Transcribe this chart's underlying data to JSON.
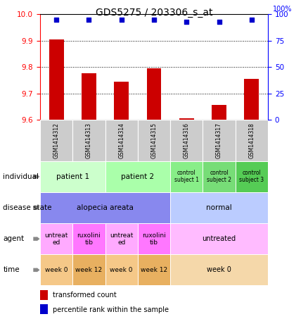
{
  "title": "GDS5275 / 203306_s_at",
  "samples": [
    "GSM1414312",
    "GSM1414313",
    "GSM1414314",
    "GSM1414315",
    "GSM1414316",
    "GSM1414317",
    "GSM1414318"
  ],
  "bar_values": [
    9.905,
    9.775,
    9.745,
    9.795,
    9.605,
    9.655,
    9.755
  ],
  "dot_values": [
    95,
    95,
    95,
    95,
    93,
    93,
    95
  ],
  "ylim_left": [
    9.6,
    10.0
  ],
  "ylim_right": [
    0,
    100
  ],
  "yticks_left": [
    9.6,
    9.7,
    9.8,
    9.9,
    10.0
  ],
  "yticks_right": [
    0,
    25,
    50,
    75,
    100
  ],
  "bar_color": "#cc0000",
  "dot_color": "#0000cc",
  "bar_bottom": 9.6,
  "sample_label_color": "#cccccc",
  "annotation_rows": [
    {
      "label": "individual",
      "cells": [
        {
          "text": "patient 1",
          "span": [
            0,
            2
          ],
          "color": "#ccffcc",
          "fontsize": 7.5
        },
        {
          "text": "patient 2",
          "span": [
            2,
            4
          ],
          "color": "#aaffaa",
          "fontsize": 7.5
        },
        {
          "text": "control\nsubject 1",
          "span": [
            4,
            5
          ],
          "color": "#88ee88",
          "fontsize": 5.5
        },
        {
          "text": "control\nsubject 2",
          "span": [
            5,
            6
          ],
          "color": "#77dd77",
          "fontsize": 5.5
        },
        {
          "text": "control\nsubject 3",
          "span": [
            6,
            7
          ],
          "color": "#55cc55",
          "fontsize": 5.5
        }
      ]
    },
    {
      "label": "disease state",
      "cells": [
        {
          "text": "alopecia areata",
          "span": [
            0,
            4
          ],
          "color": "#8888ee",
          "fontsize": 7.5
        },
        {
          "text": "normal",
          "span": [
            4,
            7
          ],
          "color": "#bbccff",
          "fontsize": 7.5
        }
      ]
    },
    {
      "label": "agent",
      "cells": [
        {
          "text": "untreat\ned",
          "span": [
            0,
            1
          ],
          "color": "#ffaaff",
          "fontsize": 6.5
        },
        {
          "text": "ruxolini\ntib",
          "span": [
            1,
            2
          ],
          "color": "#ff77ff",
          "fontsize": 6.5
        },
        {
          "text": "untreat\ned",
          "span": [
            2,
            3
          ],
          "color": "#ffaaff",
          "fontsize": 6.5
        },
        {
          "text": "ruxolini\ntib",
          "span": [
            3,
            4
          ],
          "color": "#ff77ff",
          "fontsize": 6.5
        },
        {
          "text": "untreated",
          "span": [
            4,
            7
          ],
          "color": "#ffbbff",
          "fontsize": 7
        }
      ]
    },
    {
      "label": "time",
      "cells": [
        {
          "text": "week 0",
          "span": [
            0,
            1
          ],
          "color": "#f5c888",
          "fontsize": 6.5
        },
        {
          "text": "week 12",
          "span": [
            1,
            2
          ],
          "color": "#e8b060",
          "fontsize": 6.5
        },
        {
          "text": "week 0",
          "span": [
            2,
            3
          ],
          "color": "#f5c888",
          "fontsize": 6.5
        },
        {
          "text": "week 12",
          "span": [
            3,
            4
          ],
          "color": "#e8b060",
          "fontsize": 6.5
        },
        {
          "text": "week 0",
          "span": [
            4,
            7
          ],
          "color": "#f5d8aa",
          "fontsize": 7
        }
      ]
    }
  ],
  "legend_items": [
    {
      "color": "#cc0000",
      "label": "transformed count"
    },
    {
      "color": "#0000cc",
      "label": "percentile rank within the sample"
    }
  ]
}
